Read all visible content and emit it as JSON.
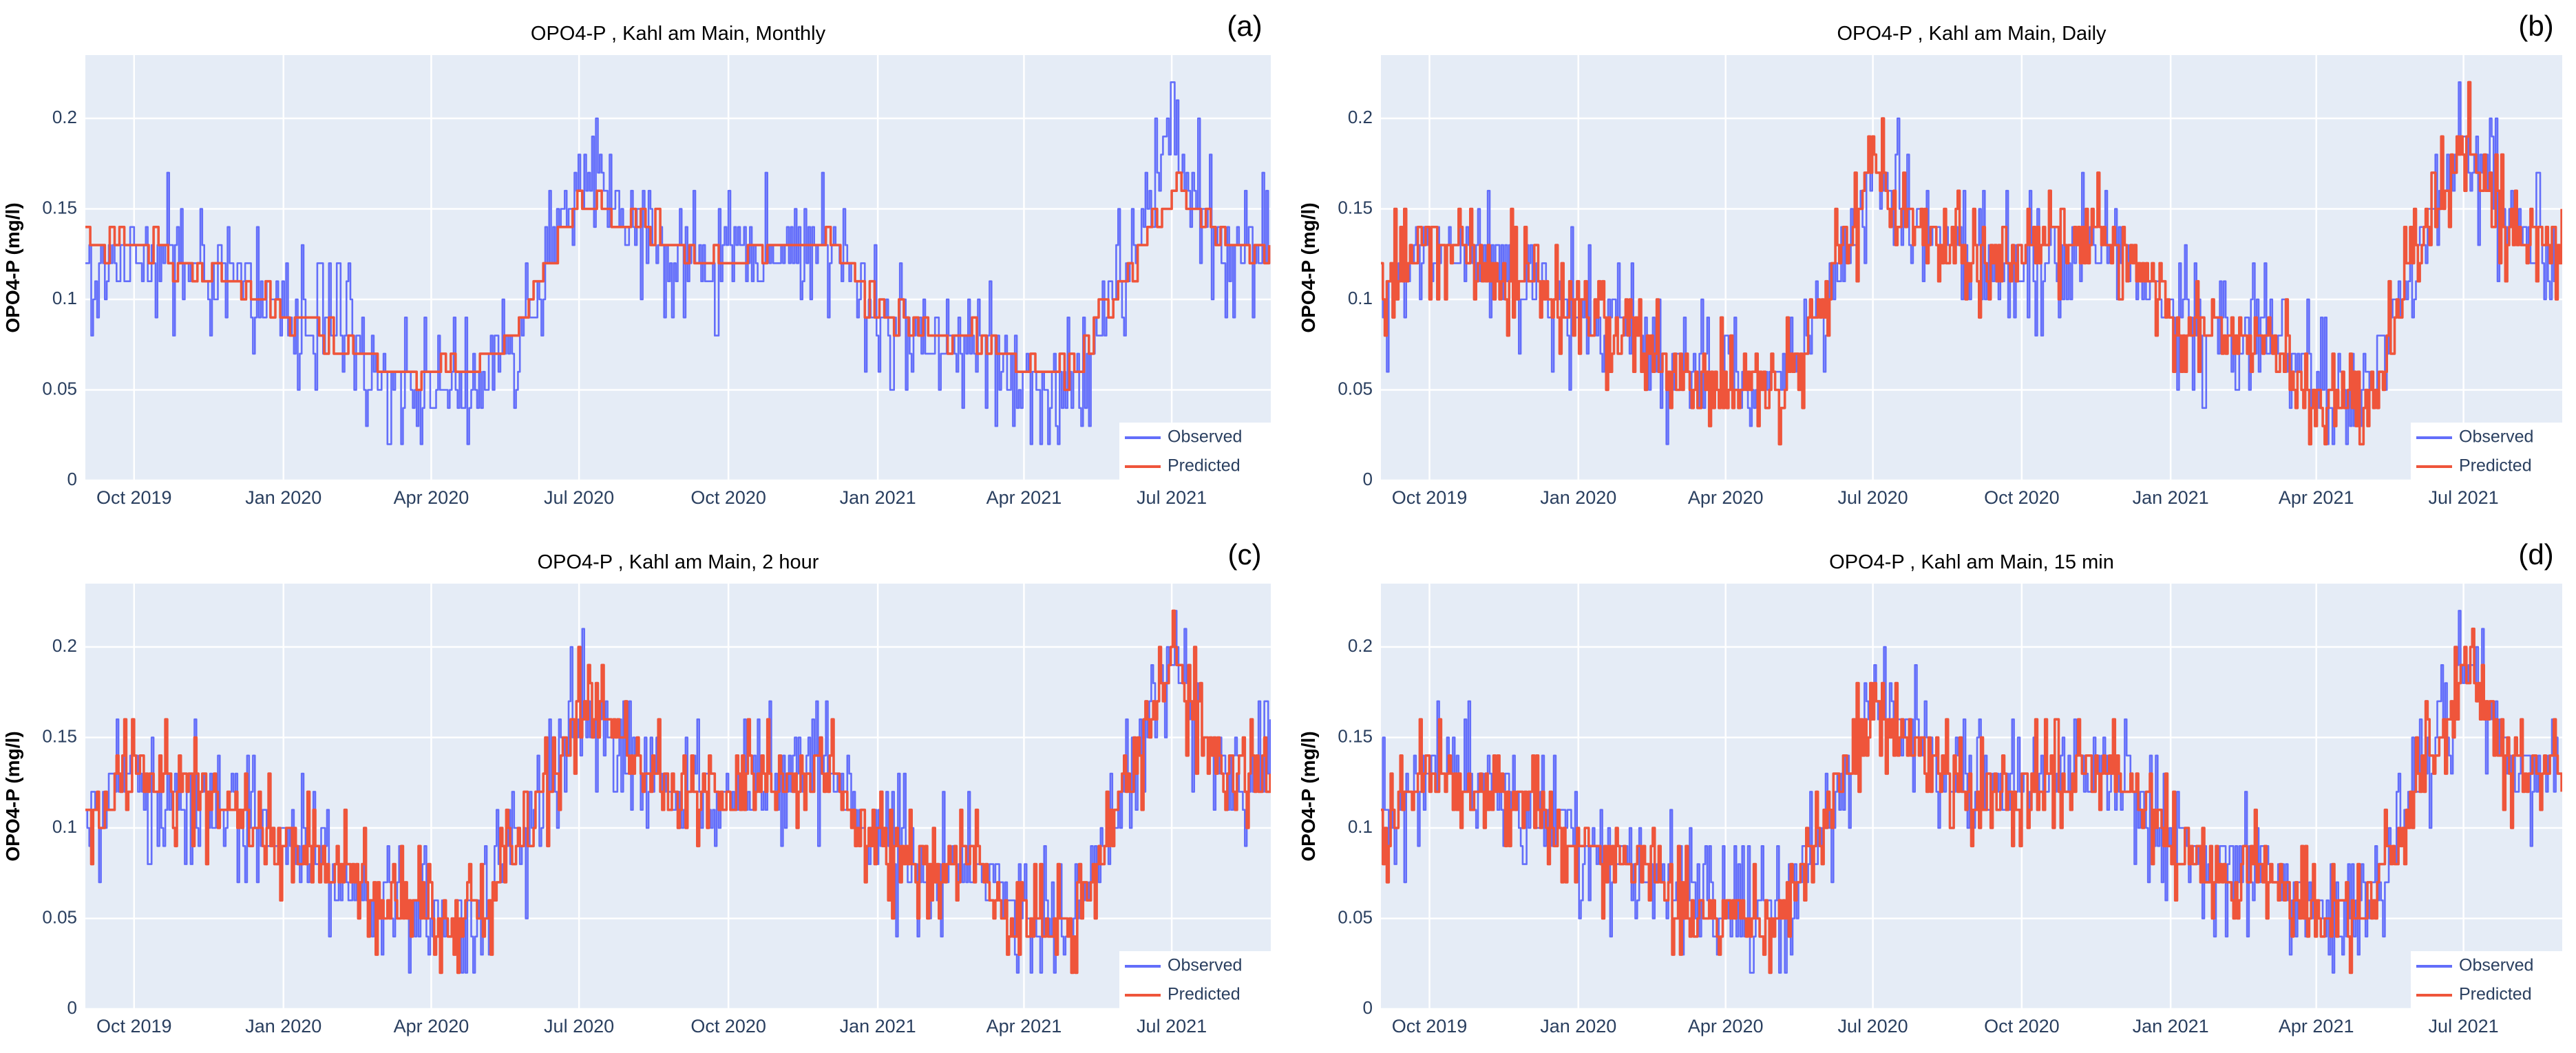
{
  "chart_data": [
    {
      "type": "line",
      "panel": "(a)",
      "title": "OPO4-P , Kahl am Main, Monthly",
      "ylabel": "OPO4-P (mg/l)",
      "xlabel": "",
      "x_ticks": [
        "Oct 2019",
        "Jan 2020",
        "Apr 2020",
        "Jul 2020",
        "Oct 2020",
        "Jan 2021",
        "Apr 2021",
        "Jul 2021"
      ],
      "y_ticks": [
        "0",
        "0.05",
        "0.1",
        "0.15",
        "0.2"
      ],
      "xlim": [
        "2019-09-01",
        "2021-08-31"
      ],
      "ylim": [
        0,
        0.235
      ],
      "legend": {
        "position": "bottom-right",
        "entries": [
          "Observed",
          "Predicted"
        ]
      },
      "grid": true,
      "series": [
        {
          "name": "Observed",
          "color": "#636efa",
          "x": [
            "2019-09-01",
            "2019-10-01",
            "2019-11-01",
            "2019-12-01",
            "2020-01-01",
            "2020-02-01",
            "2020-03-01",
            "2020-04-01",
            "2020-05-01",
            "2020-06-01",
            "2020-07-01",
            "2020-08-01",
            "2020-09-01",
            "2020-10-01",
            "2020-11-01",
            "2020-12-01",
            "2021-01-01",
            "2021-02-01",
            "2021-03-01",
            "2021-04-01",
            "2021-05-01",
            "2021-06-01",
            "2021-07-01",
            "2021-08-01"
          ],
          "y": [
            0.1,
            0.13,
            0.12,
            0.11,
            0.09,
            0.08,
            0.06,
            0.05,
            0.05,
            0.1,
            0.17,
            0.14,
            0.12,
            0.12,
            0.13,
            0.13,
            0.09,
            0.08,
            0.08,
            0.05,
            0.05,
            0.12,
            0.19,
            0.13
          ]
        },
        {
          "name": "Predicted",
          "color": "#ef553b",
          "x": [
            "2019-09-01",
            "2019-10-01",
            "2019-11-01",
            "2019-12-01",
            "2020-01-01",
            "2020-02-01",
            "2020-03-01",
            "2020-04-01",
            "2020-05-01",
            "2020-06-01",
            "2020-07-01",
            "2020-08-01",
            "2020-09-01",
            "2020-10-01",
            "2020-11-01",
            "2020-12-01",
            "2021-01-01",
            "2021-02-01",
            "2021-03-01",
            "2021-04-01",
            "2021-05-01",
            "2021-06-01",
            "2021-07-01",
            "2021-08-01"
          ],
          "y": [
            0.13,
            0.13,
            0.12,
            0.11,
            0.09,
            0.08,
            0.06,
            0.06,
            0.06,
            0.1,
            0.16,
            0.14,
            0.13,
            0.12,
            0.13,
            0.13,
            0.09,
            0.08,
            0.08,
            0.06,
            0.06,
            0.11,
            0.16,
            0.13
          ]
        }
      ]
    },
    {
      "type": "line",
      "panel": "(b)",
      "title": "OPO4-P , Kahl am Main, Daily",
      "ylabel": "OPO4-P (mg/l)",
      "xlabel": "",
      "x_ticks": [
        "Oct 2019",
        "Jan 2020",
        "Apr 2020",
        "Jul 2020",
        "Oct 2020",
        "Jan 2021",
        "Apr 2021",
        "Jul 2021"
      ],
      "y_ticks": [
        "0",
        "0.05",
        "0.1",
        "0.15",
        "0.2"
      ],
      "xlim": [
        "2019-09-01",
        "2021-08-31"
      ],
      "ylim": [
        0,
        0.235
      ],
      "legend": {
        "position": "bottom-right",
        "entries": [
          "Observed",
          "Predicted"
        ]
      },
      "grid": true,
      "series": [
        {
          "name": "Observed",
          "color": "#636efa",
          "x": [
            "2019-09-01",
            "2019-10-01",
            "2019-11-01",
            "2019-12-01",
            "2020-01-01",
            "2020-02-01",
            "2020-03-01",
            "2020-04-01",
            "2020-05-01",
            "2020-06-01",
            "2020-07-01",
            "2020-08-01",
            "2020-09-01",
            "2020-10-01",
            "2020-11-01",
            "2020-12-01",
            "2021-01-01",
            "2021-02-01",
            "2021-03-01",
            "2021-04-01",
            "2021-05-01",
            "2021-06-01",
            "2021-07-01",
            "2021-08-01"
          ],
          "y": [
            0.1,
            0.13,
            0.12,
            0.11,
            0.09,
            0.08,
            0.06,
            0.05,
            0.05,
            0.1,
            0.17,
            0.14,
            0.12,
            0.12,
            0.13,
            0.13,
            0.09,
            0.08,
            0.08,
            0.05,
            0.05,
            0.12,
            0.19,
            0.13
          ]
        },
        {
          "name": "Predicted",
          "color": "#ef553b",
          "x": [
            "2019-09-01",
            "2019-10-01",
            "2019-11-01",
            "2019-12-01",
            "2020-01-01",
            "2020-02-01",
            "2020-03-01",
            "2020-04-01",
            "2020-05-01",
            "2020-06-01",
            "2020-07-01",
            "2020-08-01",
            "2020-09-01",
            "2020-10-01",
            "2020-11-01",
            "2020-12-01",
            "2021-01-01",
            "2021-02-01",
            "2021-03-01",
            "2021-04-01",
            "2021-05-01",
            "2021-06-01",
            "2021-07-01",
            "2021-08-01"
          ],
          "y": [
            0.11,
            0.13,
            0.12,
            0.11,
            0.09,
            0.08,
            0.06,
            0.05,
            0.05,
            0.1,
            0.17,
            0.14,
            0.12,
            0.12,
            0.14,
            0.13,
            0.09,
            0.08,
            0.08,
            0.04,
            0.04,
            0.12,
            0.19,
            0.13
          ]
        }
      ]
    },
    {
      "type": "line",
      "panel": "(c)",
      "title": "OPO4-P , Kahl am Main, 2 hour",
      "ylabel": "OPO4-P (mg/l)",
      "xlabel": "",
      "x_ticks": [
        "Oct 2019",
        "Jan 2020",
        "Apr 2020",
        "Jul 2020",
        "Oct 2020",
        "Jan 2021",
        "Apr 2021",
        "Jul 2021"
      ],
      "y_ticks": [
        "0",
        "0.05",
        "0.1",
        "0.15",
        "0.2"
      ],
      "xlim": [
        "2019-09-01",
        "2021-08-31"
      ],
      "ylim": [
        0,
        0.235
      ],
      "legend": {
        "position": "bottom-right",
        "entries": [
          "Observed",
          "Predicted"
        ]
      },
      "grid": true,
      "series": [
        {
          "name": "Observed",
          "color": "#636efa",
          "x": [
            "2019-09-01",
            "2019-10-01",
            "2019-11-01",
            "2019-12-01",
            "2020-01-01",
            "2020-02-01",
            "2020-03-01",
            "2020-04-01",
            "2020-05-01",
            "2020-06-01",
            "2020-07-01",
            "2020-08-01",
            "2020-09-01",
            "2020-10-01",
            "2020-11-01",
            "2020-12-01",
            "2021-01-01",
            "2021-02-01",
            "2021-03-01",
            "2021-04-01",
            "2021-05-01",
            "2021-06-01",
            "2021-07-01",
            "2021-08-01"
          ],
          "y": [
            0.1,
            0.13,
            0.12,
            0.11,
            0.09,
            0.08,
            0.06,
            0.05,
            0.05,
            0.1,
            0.17,
            0.14,
            0.12,
            0.12,
            0.13,
            0.13,
            0.09,
            0.08,
            0.08,
            0.05,
            0.05,
            0.12,
            0.19,
            0.13
          ]
        },
        {
          "name": "Predicted",
          "color": "#ef553b",
          "x": [
            "2019-09-01",
            "2019-10-01",
            "2019-11-01",
            "2019-12-01",
            "2020-01-01",
            "2020-02-01",
            "2020-03-01",
            "2020-04-01",
            "2020-05-01",
            "2020-06-01",
            "2020-07-01",
            "2020-08-01",
            "2020-09-01",
            "2020-10-01",
            "2020-11-01",
            "2020-12-01",
            "2021-01-01",
            "2021-02-01",
            "2021-03-01",
            "2021-04-01",
            "2021-05-01",
            "2021-06-01",
            "2021-07-01",
            "2021-08-01"
          ],
          "y": [
            0.1,
            0.13,
            0.12,
            0.11,
            0.09,
            0.08,
            0.06,
            0.05,
            0.05,
            0.1,
            0.17,
            0.14,
            0.12,
            0.12,
            0.13,
            0.13,
            0.09,
            0.08,
            0.08,
            0.05,
            0.04,
            0.12,
            0.19,
            0.13
          ]
        }
      ]
    },
    {
      "type": "line",
      "panel": "(d)",
      "title": "OPO4-P , Kahl am Main, 15 min",
      "ylabel": "OPO4-P (mg/l)",
      "xlabel": "",
      "x_ticks": [
        "Oct 2019",
        "Jan 2020",
        "Apr 2020",
        "Jul 2020",
        "Oct 2020",
        "Jan 2021",
        "Apr 2021",
        "Jul 2021"
      ],
      "y_ticks": [
        "0",
        "0.05",
        "0.1",
        "0.15",
        "0.2"
      ],
      "xlim": [
        "2019-09-01",
        "2021-08-31"
      ],
      "ylim": [
        0,
        0.235
      ],
      "legend": {
        "position": "bottom-right",
        "entries": [
          "Observed",
          "Predicted"
        ]
      },
      "grid": true,
      "series": [
        {
          "name": "Observed",
          "color": "#636efa",
          "x": [
            "2019-09-01",
            "2019-10-01",
            "2019-11-01",
            "2019-12-01",
            "2020-01-01",
            "2020-02-01",
            "2020-03-01",
            "2020-04-01",
            "2020-05-01",
            "2020-06-01",
            "2020-07-01",
            "2020-08-01",
            "2020-09-01",
            "2020-10-01",
            "2020-11-01",
            "2020-12-01",
            "2021-01-01",
            "2021-02-01",
            "2021-03-01",
            "2021-04-01",
            "2021-05-01",
            "2021-06-01",
            "2021-07-01",
            "2021-08-01"
          ],
          "y": [
            0.1,
            0.13,
            0.12,
            0.11,
            0.09,
            0.08,
            0.06,
            0.05,
            0.05,
            0.1,
            0.17,
            0.14,
            0.12,
            0.12,
            0.13,
            0.13,
            0.09,
            0.08,
            0.08,
            0.05,
            0.05,
            0.12,
            0.19,
            0.13
          ]
        },
        {
          "name": "Predicted",
          "color": "#ef553b",
          "x": [
            "2019-09-01",
            "2019-10-01",
            "2019-11-01",
            "2019-12-01",
            "2020-01-01",
            "2020-02-01",
            "2020-03-01",
            "2020-04-01",
            "2020-05-01",
            "2020-06-01",
            "2020-07-01",
            "2020-08-01",
            "2020-09-01",
            "2020-10-01",
            "2020-11-01",
            "2020-12-01",
            "2021-01-01",
            "2021-02-01",
            "2021-03-01",
            "2021-04-01",
            "2021-05-01",
            "2021-06-01",
            "2021-07-01",
            "2021-08-01"
          ],
          "y": [
            0.1,
            0.13,
            0.12,
            0.11,
            0.09,
            0.08,
            0.06,
            0.05,
            0.05,
            0.1,
            0.17,
            0.14,
            0.12,
            0.12,
            0.13,
            0.13,
            0.09,
            0.08,
            0.08,
            0.05,
            0.05,
            0.12,
            0.19,
            0.13
          ]
        }
      ]
    }
  ]
}
